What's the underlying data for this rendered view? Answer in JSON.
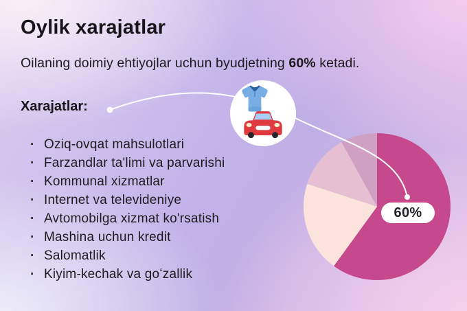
{
  "header": {
    "title": "Oylik xarajatlar",
    "subtitle": {
      "prefix": "Oilaning doimiy ehtiyojlar uchun byudjetning ",
      "bold": "60%",
      "suffix": " ketadi."
    }
  },
  "expenses": {
    "heading": "Xarajatlar:",
    "bullet": "·",
    "items": [
      "Oziq-ovqat mahsulotlari",
      "Farzandlar ta'limi va parvarishi",
      "Kommunal xizmatlar",
      "Internet va televideniye",
      "Avtomobilga xizmat ko'rsatish",
      "Mashina uchun kredit",
      "Salomatlik",
      "Kiyim-kechak va goʻzallik"
    ]
  },
  "chart_data": {
    "type": "pie",
    "title": "",
    "annotation": "60%",
    "start_angle_deg": 0,
    "direction": "clockwise",
    "legend": "none",
    "segments": [
      {
        "label": "60%",
        "value": 60,
        "color": "#c5498c"
      },
      {
        "label": "",
        "value": 20,
        "color": "#fce3dc"
      },
      {
        "label": "",
        "value": 12,
        "color": "#e6c0d2"
      },
      {
        "label": "",
        "value": 8,
        "color": "#d0a0c2"
      }
    ]
  },
  "callout": {
    "icons": [
      "tshirt-icon",
      "car-icon"
    ],
    "line_color": "#ffffff"
  }
}
